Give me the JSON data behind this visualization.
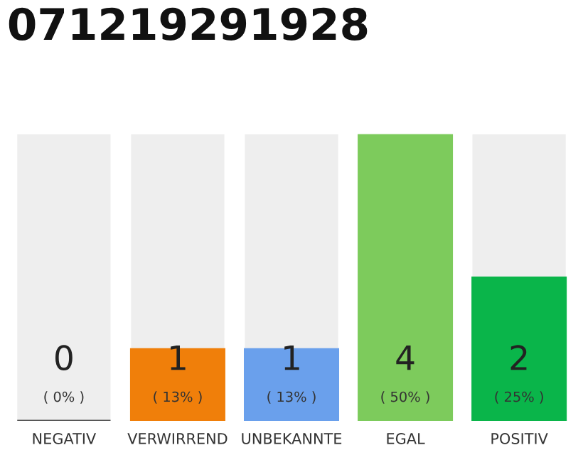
{
  "chart_data": {
    "type": "bar",
    "title": "071219291928",
    "categories": [
      "NEGATIV",
      "VERWIRREND",
      "UNBEKANNTE",
      "EGAL",
      "POSITIV"
    ],
    "stacked": true,
    "series": [
      {
        "colors": [
          "#555555",
          "#f07f0a",
          "#6aa0ec",
          "#7dcb5c",
          "#0ab54a"
        ],
        "values": [
          0,
          1,
          1,
          4,
          2
        ],
        "value_labels": [
          "0",
          "1",
          "1",
          "4",
          "2"
        ]
      },
      {
        "color": "#eeeeee",
        "values": [
          4,
          3,
          3,
          0,
          2
        ]
      }
    ],
    "annotations": [
      "( 0% )",
      "( 13% )",
      "( 13% )",
      "( 50% )",
      "( 25% )"
    ],
    "grid": false,
    "legend": false
  }
}
